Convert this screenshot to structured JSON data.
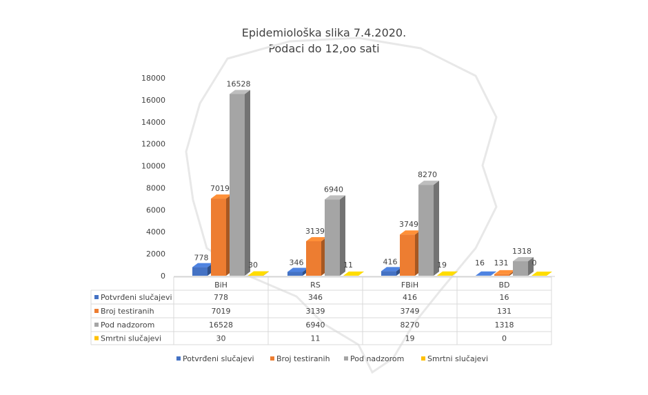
{
  "chart_data": {
    "type": "bar",
    "title": "Epidemiološka slika 7.4.2020.",
    "subtitle": "Podaci do 12,oo sati",
    "categories": [
      "BiH",
      "RS",
      "FBiH",
      "BD"
    ],
    "series": [
      {
        "name": "Potvrđeni slučajevi",
        "color": "#4472c4",
        "values": [
          778,
          346,
          416,
          16
        ]
      },
      {
        "name": "Broj testiranih",
        "color": "#ed7d31",
        "values": [
          7019,
          3139,
          3749,
          131
        ]
      },
      {
        "name": "Pod nadzorom",
        "color": "#a5a5a5",
        "values": [
          16528,
          6940,
          8270,
          1318
        ]
      },
      {
        "name": "Smrtni slučajevi",
        "color": "#ffc000",
        "values": [
          30,
          11,
          19,
          0
        ]
      }
    ],
    "ylim": [
      0,
      18000
    ],
    "yticks": [
      "0",
      "2000",
      "4000",
      "6000",
      "8000",
      "10000",
      "12000",
      "14000",
      "16000",
      "18000"
    ],
    "legend_position": "bottom",
    "data_table": true,
    "grid": false
  }
}
